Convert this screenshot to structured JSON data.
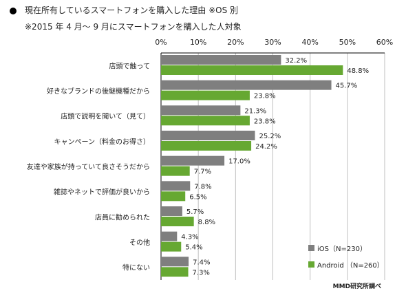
{
  "header": {
    "title": "現在所有しているスマートフォンを購入した理由 ※OS 別",
    "subtitle": "※2015 年 4 月～ 9 月にスマートフォンを購入した人対象"
  },
  "credit": "MMD研究所調べ",
  "chart_data": {
    "type": "bar",
    "orientation": "horizontal",
    "x_ticks": [
      "0%",
      "10%",
      "20%",
      "30%",
      "40%",
      "50%",
      "60%"
    ],
    "xlim": [
      0,
      60
    ],
    "grid": true,
    "legend_position": "bottom-right",
    "categories": [
      "店頭で触って",
      "好きなブランドの後継機種だから",
      "店頭で説明を聞いて（見て）",
      "キャンペーン（料金のお得さ）",
      "友達や家族が持っていて良さそうだから",
      "雑誌やネットで評価が良いから",
      "店員に勧められた",
      "その他",
      "特にない"
    ],
    "series": [
      {
        "name": "iOS（N=230）",
        "color": "#7f7f7f",
        "values": [
          32.2,
          45.7,
          21.3,
          25.2,
          17.0,
          7.8,
          5.7,
          4.3,
          7.4
        ],
        "labels": [
          "32.2%",
          "45.7%",
          "21.3%",
          "25.2%",
          "17.0%",
          "7.8%",
          "5.7%",
          "4.3%",
          "7.4%"
        ]
      },
      {
        "name": "Android （N=260）",
        "color": "#66a832",
        "values": [
          48.8,
          23.8,
          23.8,
          24.2,
          7.7,
          6.5,
          8.8,
          5.4,
          7.3
        ],
        "labels": [
          "48.8%",
          "23.8%",
          "23.8%",
          "24.2%",
          "7.7%",
          "6.5%",
          "8.8%",
          "5.4%",
          "7.3%"
        ]
      }
    ]
  }
}
